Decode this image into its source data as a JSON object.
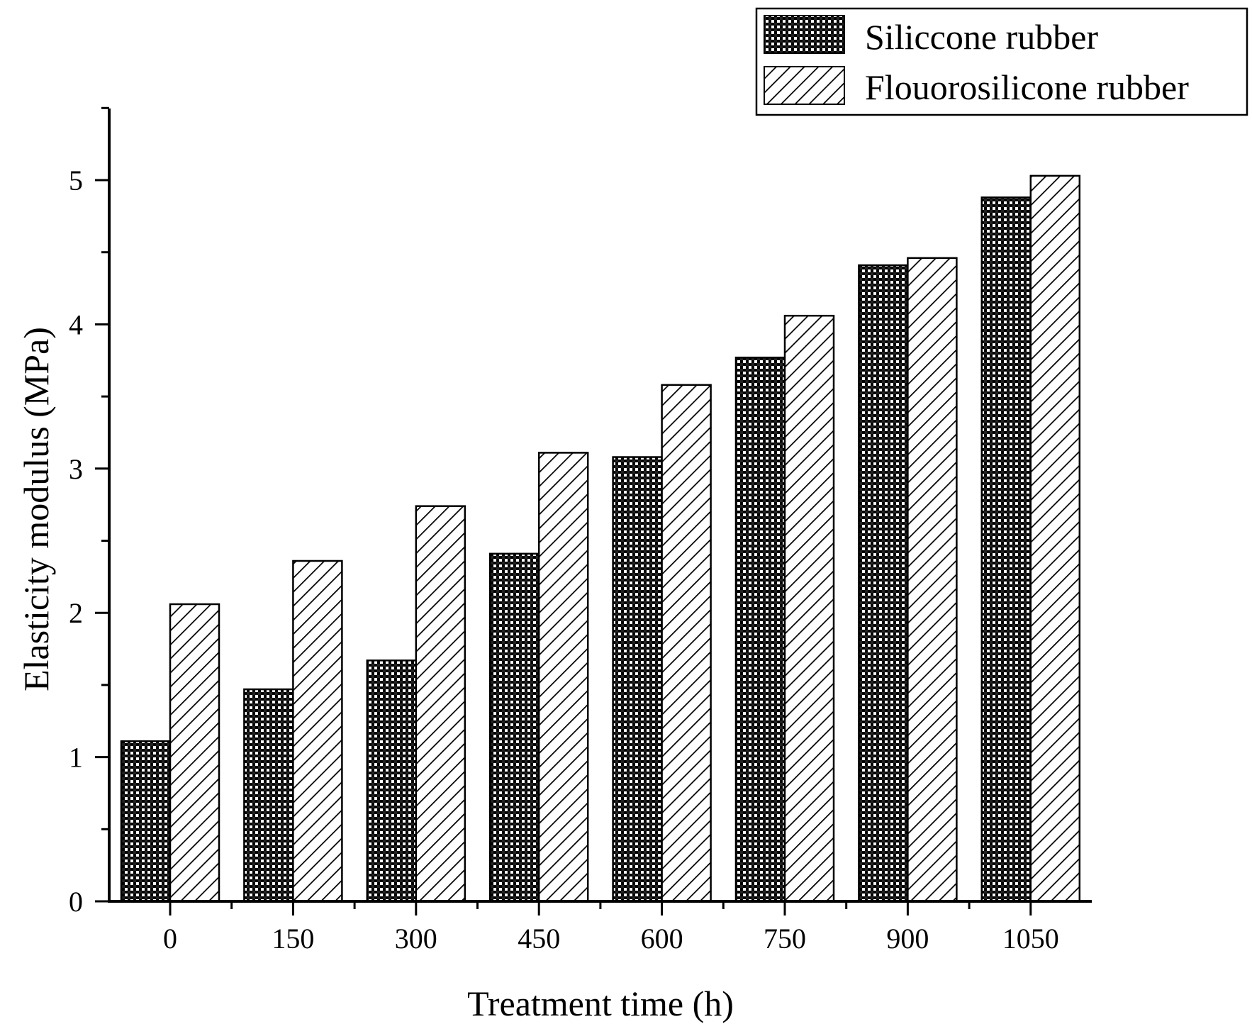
{
  "chart_data": {
    "type": "bar",
    "title": "",
    "xlabel": "Treatment time (h)",
    "ylabel": "Elasticity modulus (MPa)",
    "categories": [
      "0",
      "150",
      "300",
      "450",
      "600",
      "750",
      "900",
      "1050"
    ],
    "series": [
      {
        "name": "Siliccone rubber",
        "pattern": "checker",
        "values": [
          1.11,
          1.47,
          1.67,
          2.41,
          3.08,
          3.77,
          4.41,
          4.88
        ]
      },
      {
        "name": "Flouorosilicone rubber",
        "pattern": "diagonal-hatch",
        "values": [
          2.06,
          2.36,
          2.74,
          3.11,
          3.58,
          4.06,
          4.46,
          5.03
        ]
      }
    ],
    "ylim": [
      0,
      5.5
    ],
    "yticks": [
      "0",
      "1",
      "2",
      "3",
      "4",
      "5"
    ],
    "grid": false,
    "legend_position": "top-right",
    "colors": {
      "stroke": "#000000",
      "fill_dark": "#000000",
      "fill_light": "#ffffff"
    }
  }
}
